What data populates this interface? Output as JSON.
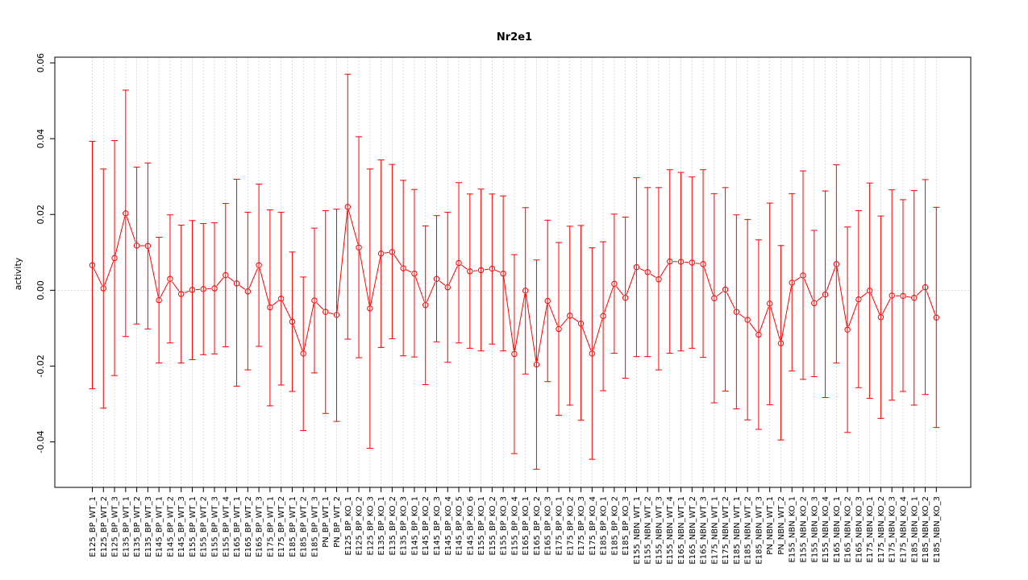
{
  "chart_data": {
    "type": "scatter",
    "title": "Nr2e1",
    "xlabel": "",
    "ylabel": "activity",
    "ylim": [
      -0.052,
      0.0615
    ],
    "yticks": [
      -0.04,
      -0.02,
      0.0,
      0.02,
      0.04,
      0.06
    ],
    "ytick_labels": [
      "-0.04",
      "-0.02",
      "0.00",
      "0.02",
      "0.04",
      "0.06"
    ],
    "grid": true,
    "colors": {
      "series": "#ff0000",
      "grid": "#d3d3d3"
    },
    "categories": [
      "E125_BP_WT_1",
      "E125_BP_WT_2",
      "E125_BP_WT_3",
      "E135_BP_WT_1",
      "E135_BP_WT_2",
      "E135_BP_WT_3",
      "E145_BP_WT_1",
      "E145_BP_WT_2",
      "E145_BP_WT_3",
      "E155_BP_WT_1",
      "E155_BP_WT_2",
      "E155_BP_WT_3",
      "E155_BP_WT_4",
      "E165_BP_WT_1",
      "E165_BP_WT_2",
      "E165_BP_WT_3",
      "E175_BP_WT_1",
      "E175_BP_WT_2",
      "E185_BP_WT_1",
      "E185_BP_WT_2",
      "E185_BP_WT_3",
      "PN_BP_WT_1",
      "PN_BP_WT_2",
      "E125_BP_KO_1",
      "E125_BP_KO_2",
      "E125_BP_KO_3",
      "E135_BP_KO_1",
      "E135_BP_KO_2",
      "E135_BP_KO_3",
      "E145_BP_KO_1",
      "E145_BP_KO_2",
      "E145_BP_KO_3",
      "E145_BP_KO_4",
      "E145_BP_KO_5",
      "E145_BP_KO_6",
      "E155_BP_KO_1",
      "E155_BP_KO_2",
      "E155_BP_KO_3",
      "E155_BP_KO_4",
      "E165_BP_KO_1",
      "E165_BP_KO_2",
      "E165_BP_KO_3",
      "E175_BP_KO_1",
      "E175_BP_KO_2",
      "E175_BP_KO_3",
      "E175_BP_KO_4",
      "E185_BP_KO_1",
      "E185_BP_KO_2",
      "E185_BP_KO_3",
      "E155_NBN_WT_1",
      "E155_NBN_WT_2",
      "E155_NBN_WT_3",
      "E155_NBN_WT_4",
      "E165_NBN_WT_1",
      "E165_NBN_WT_2",
      "E165_NBN_WT_3",
      "E175_NBN_WT_1",
      "E175_NBN_WT_2",
      "E185_NBN_WT_1",
      "E185_NBN_WT_2",
      "E185_NBN_WT_3",
      "PN_NBN_WT_1",
      "PN_NBN_WT_2",
      "E155_NBN_KO_1",
      "E155_NBN_KO_2",
      "E155_NBN_KO_3",
      "E155_NBN_KO_4",
      "E165_NBN_KO_1",
      "E165_NBN_KO_2",
      "E165_NBN_KO_3",
      "E175_NBN_KO_1",
      "E175_NBN_KO_2",
      "E175_NBN_KO_3",
      "E175_NBN_KO_4",
      "E185_NBN_KO_1",
      "E185_NBN_KO_2",
      "E185_NBN_KO_3"
    ],
    "values": [
      0.0066,
      0.0005,
      0.0085,
      0.0203,
      0.0118,
      0.0117,
      -0.0026,
      0.003,
      -0.001,
      0.0001,
      0.0003,
      0.0005,
      0.004,
      0.0018,
      -0.0003,
      0.0066,
      -0.0045,
      -0.0022,
      -0.0083,
      -0.0167,
      -0.0027,
      -0.0057,
      -0.0065,
      0.022,
      0.0113,
      -0.0048,
      0.0097,
      0.0101,
      0.0058,
      0.0044,
      -0.0039,
      0.003,
      0.0008,
      0.0072,
      0.005,
      0.0053,
      0.0057,
      0.0044,
      -0.0168,
      -0.0001,
      -0.0196,
      -0.0028,
      -0.0102,
      -0.0067,
      -0.0088,
      -0.0167,
      -0.0068,
      0.0017,
      -0.002,
      0.0061,
      0.0048,
      0.0029,
      0.0076,
      0.0075,
      0.0073,
      0.0069,
      -0.0021,
      0.0002,
      -0.0057,
      -0.0078,
      -0.0117,
      -0.0035,
      -0.014,
      0.002,
      0.0039,
      -0.0034,
      -0.0011,
      0.0069,
      -0.0104,
      -0.0024,
      -0.0001,
      -0.0071,
      -0.0014,
      -0.0015,
      -0.002,
      0.0008,
      -0.0072
    ],
    "upper": [
      0.0393,
      0.032,
      0.0395,
      0.0528,
      0.0325,
      0.0336,
      0.014,
      0.0199,
      0.0172,
      0.0184,
      0.0176,
      0.0178,
      0.0229,
      0.0293,
      0.0206,
      0.028,
      0.0212,
      0.0206,
      0.0101,
      0.0035,
      0.0164,
      0.021,
      0.0214,
      0.057,
      0.0405,
      0.032,
      0.0344,
      0.0332,
      0.029,
      0.0266,
      0.017,
      0.0197,
      0.0206,
      0.0284,
      0.0254,
      0.0267,
      0.0254,
      0.0249,
      0.0094,
      0.0218,
      0.008,
      0.0185,
      0.0126,
      0.0169,
      0.0171,
      0.0112,
      0.0128,
      0.0201,
      0.0193,
      0.0297,
      0.0271,
      0.0271,
      0.0318,
      0.0311,
      0.0299,
      0.0318,
      0.0255,
      0.0271,
      0.0199,
      0.0187,
      0.0133,
      0.023,
      0.0118,
      0.0255,
      0.0315,
      0.0158,
      0.0262,
      0.0331,
      0.0167,
      0.021,
      0.0283,
      0.0196,
      0.0265,
      0.0239,
      0.0263,
      0.0292,
      0.0219
    ],
    "lower": [
      -0.026,
      -0.0311,
      -0.0225,
      -0.0122,
      -0.0089,
      -0.0102,
      -0.0192,
      -0.0139,
      -0.0192,
      -0.0183,
      -0.017,
      -0.0168,
      -0.0149,
      -0.0253,
      -0.021,
      -0.0148,
      -0.0305,
      -0.025,
      -0.0267,
      -0.037,
      -0.0218,
      -0.0325,
      -0.0346,
      -0.0129,
      -0.0178,
      -0.0417,
      -0.0151,
      -0.0128,
      -0.0173,
      -0.0176,
      -0.0249,
      -0.0136,
      -0.019,
      -0.0139,
      -0.0153,
      -0.016,
      -0.0142,
      -0.016,
      -0.0431,
      -0.0221,
      -0.0472,
      -0.0241,
      -0.033,
      -0.0303,
      -0.0343,
      -0.0446,
      -0.0265,
      -0.0166,
      -0.0232,
      -0.0175,
      -0.0175,
      -0.021,
      -0.0166,
      -0.016,
      -0.0153,
      -0.0177,
      -0.0297,
      -0.0266,
      -0.0313,
      -0.0342,
      -0.0367,
      -0.0302,
      -0.0395,
      -0.0213,
      -0.0235,
      -0.0228,
      -0.0283,
      -0.0192,
      -0.0375,
      -0.0257,
      -0.0285,
      -0.0338,
      -0.029,
      -0.0267,
      -0.0303,
      -0.0275,
      -0.0362
    ]
  }
}
